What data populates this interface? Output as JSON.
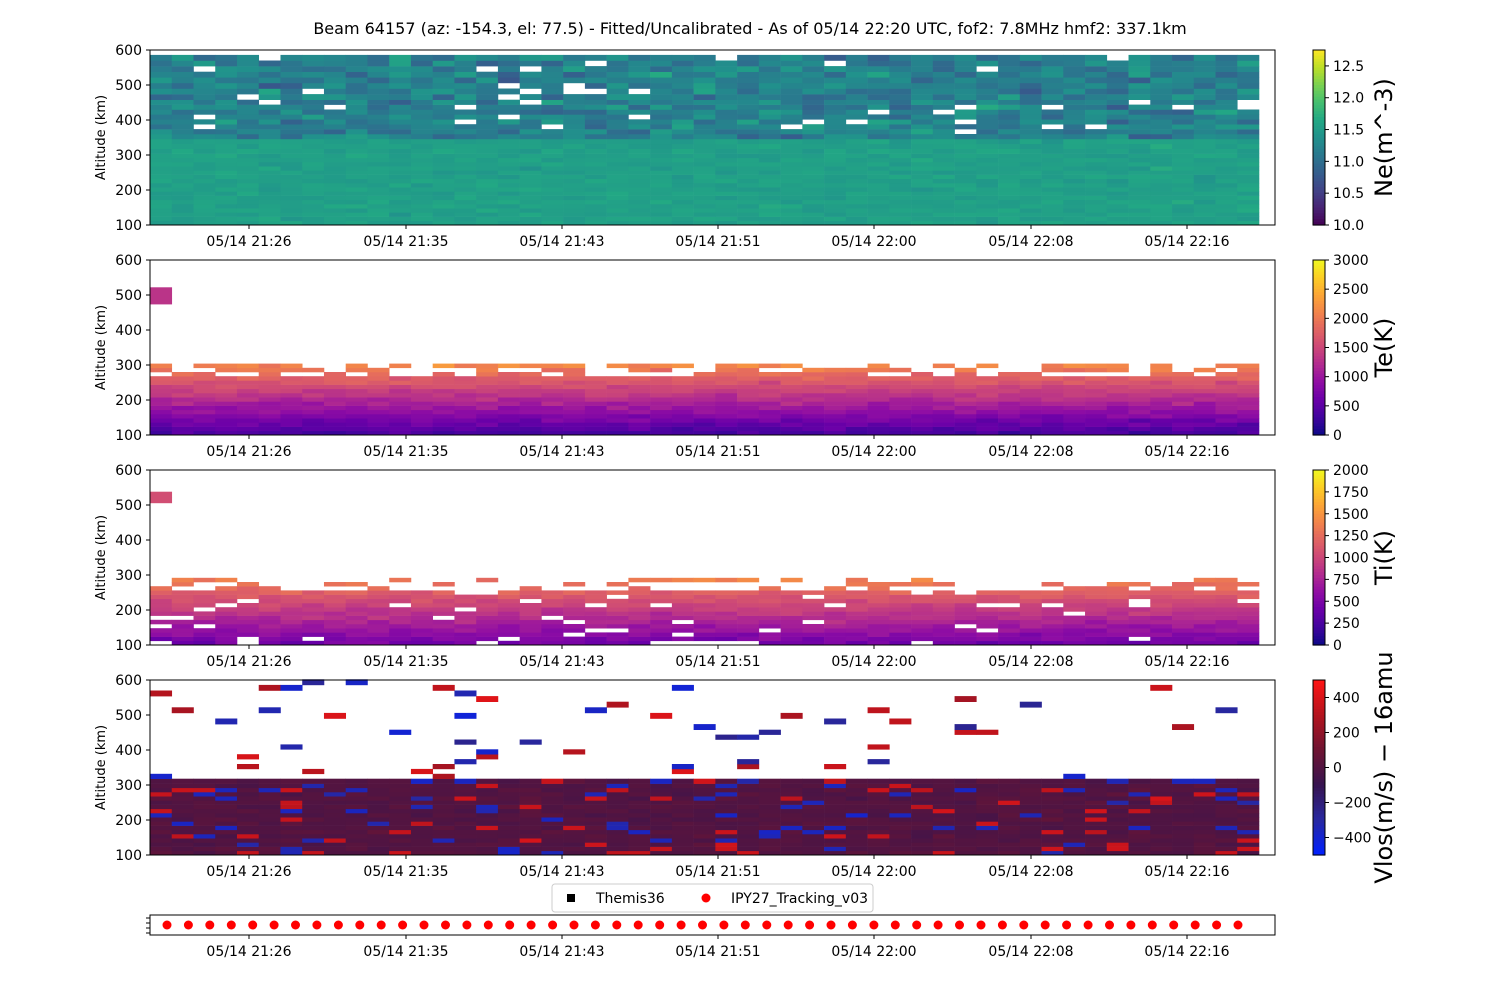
{
  "title": "Beam 64157 (az: -154.3, el: 77.5) - Fitted/Uncalibrated - As of 05/14 22:20 UTC, fof2: 7.8MHz  hmf2: 337.1km",
  "x_tick_labels": [
    "05/14 21:26",
    "05/14 21:35",
    "05/14 21:43",
    "05/14 21:51",
    "05/14 22:00",
    "05/14 22:08",
    "05/14 22:16"
  ],
  "y_axis_label": "Altitude (km)",
  "y_tick_labels": [
    "100",
    "200",
    "300",
    "400",
    "500",
    "600"
  ],
  "legend": [
    {
      "label": "Themis36",
      "marker": "square",
      "color": "#000000"
    },
    {
      "label": "IPY27_Tracking_v03",
      "marker": "circle",
      "color": "#ff0000"
    }
  ],
  "chart_data": [
    {
      "type": "heatmap",
      "name": "Ne",
      "ylabel": "Altitude (km)",
      "ylim": [
        100,
        600
      ],
      "colorbar_label": "Ne(m^-3)",
      "colorbar_ticks": [
        "10.0",
        "10.5",
        "11.0",
        "11.5",
        "12.0",
        "12.5"
      ],
      "clim": [
        10.0,
        12.75
      ],
      "colormap": "viridis",
      "description_of_values": "log10 electron density, typically 11.3-11.9 at low altitude with more variable 10.5-12.3 above 350 km"
    },
    {
      "type": "heatmap",
      "name": "Te",
      "ylabel": "Altitude (km)",
      "ylim": [
        100,
        600
      ],
      "colorbar_label": "Te(K)",
      "colorbar_ticks": [
        "0",
        "500",
        "1000",
        "1500",
        "2000",
        "2500",
        "3000"
      ],
      "clim": [
        0,
        3000
      ],
      "colormap": "plasma"
    },
    {
      "type": "heatmap",
      "name": "Ti",
      "ylabel": "Altitude (km)",
      "ylim": [
        100,
        600
      ],
      "colorbar_label": "Ti(K)",
      "colorbar_ticks": [
        "0",
        "250",
        "500",
        "750",
        "1000",
        "1250",
        "1500",
        "1750",
        "2000"
      ],
      "clim": [
        0,
        2000
      ],
      "colormap": "plasma"
    },
    {
      "type": "heatmap",
      "name": "Vlos",
      "ylabel": "Altitude (km)",
      "ylim": [
        100,
        600
      ],
      "colorbar_label": "Vlos(m/s) − 16amu",
      "colorbar_ticks": [
        "400",
        "200",
        "0",
        "−200",
        "−400"
      ],
      "clim": [
        -500,
        500
      ],
      "colormap": "blue-dark-red"
    },
    {
      "type": "scatter",
      "name": "mode-timeline",
      "series": [
        {
          "name": "IPY27_Tracking_v03",
          "color": "#ff0000",
          "marker": "circle",
          "count": 51
        }
      ]
    }
  ],
  "colors": {
    "frame": "#000000",
    "background": "#ffffff",
    "tracking_marker": "#ff0000"
  }
}
